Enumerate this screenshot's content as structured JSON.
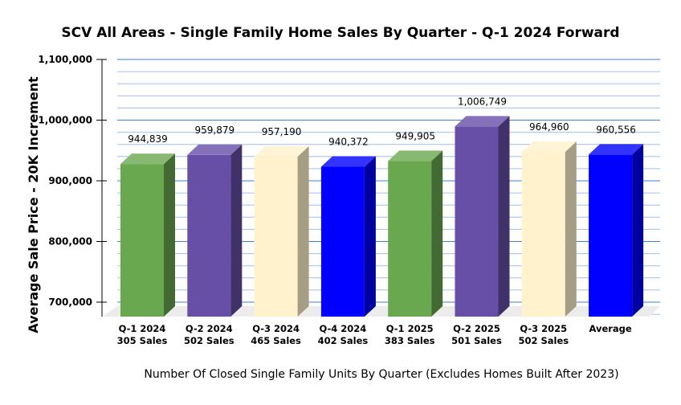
{
  "chart_data": {
    "type": "bar",
    "title": "SCV All Areas - Single Family Home Sales By Quarter - Q-1 2024 Forward",
    "xlabel": "Number Of Closed Single Family Units By Quarter (Excludes Homes Built After 2023)",
    "ylabel": "Average Sale Price - 20K Increment",
    "categories": [
      [
        "Q-1 2024",
        "305 Sales"
      ],
      [
        "Q-2 2024",
        "502 Sales"
      ],
      [
        "Q-3 2024",
        "465 Sales"
      ],
      [
        "Q-4 2024",
        "402 Sales"
      ],
      [
        "Q-1 2025",
        "383 Sales"
      ],
      [
        "Q-2 2025",
        "501 Sales"
      ],
      [
        "Q-3 2025",
        "502 Sales"
      ],
      [
        "Average",
        ""
      ]
    ],
    "values": [
      944839,
      959879,
      957190,
      940372,
      949905,
      1006749,
      964960,
      960556
    ],
    "value_labels": [
      "944,839",
      "959,879",
      "957,190",
      "940,372",
      "949,905",
      "1,006,749",
      "964,960",
      "960,556"
    ],
    "colors": [
      "#6aa84f",
      "#674ea7",
      "#fff2cc",
      "#0000ff",
      "#6aa84f",
      "#674ea7",
      "#fff2cc",
      "#0000ff"
    ],
    "ylim": [
      676000,
      1100000
    ],
    "yticks": [
      700000,
      800000,
      900000,
      1000000,
      1100000
    ],
    "ytick_labels": [
      "700,000",
      "800,000",
      "900,000",
      "1,000,000",
      "1,100,000"
    ],
    "minor_step": 20000,
    "grid": true,
    "style": "3d"
  }
}
